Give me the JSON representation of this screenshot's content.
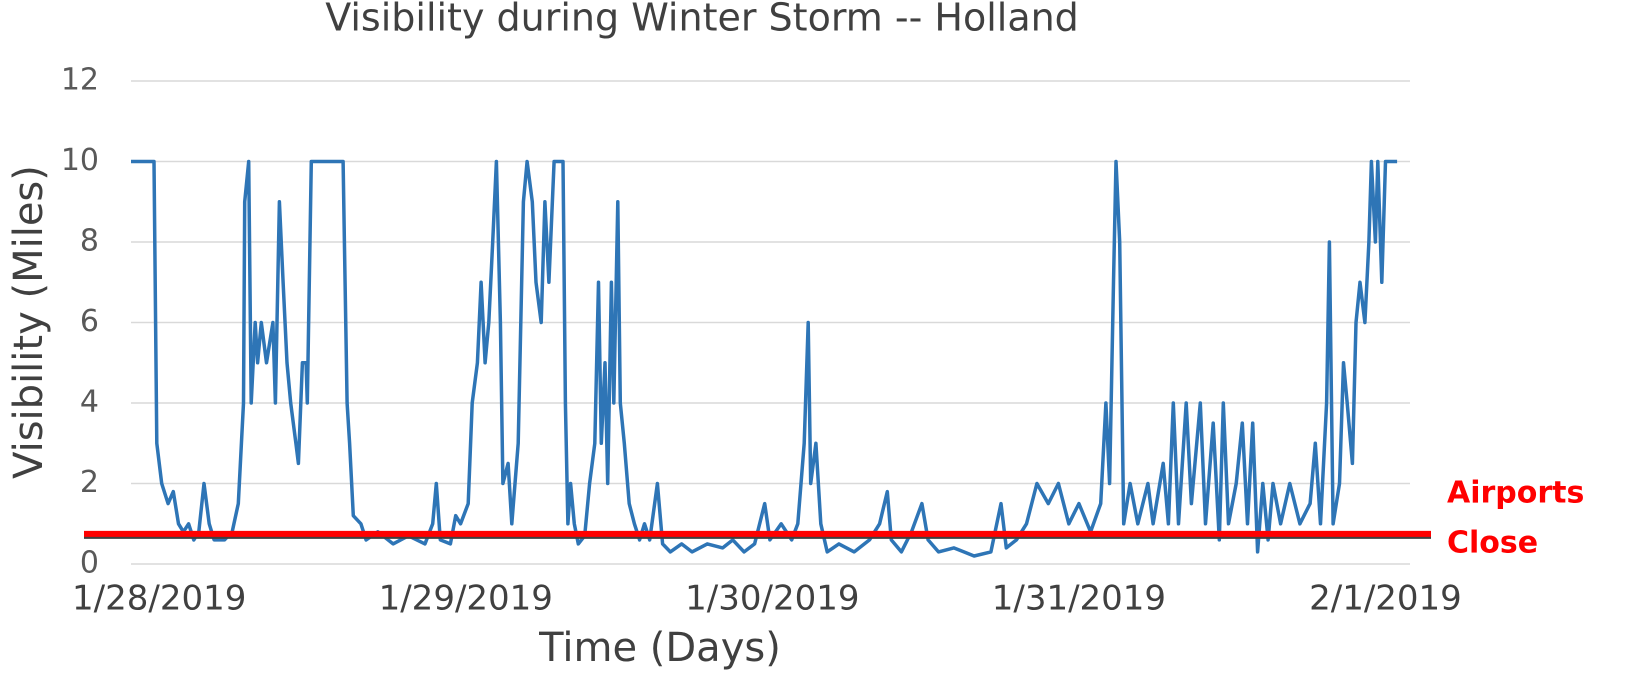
{
  "chart_data": {
    "type": "line",
    "title": "Visibility during Winter Storm -- Holland",
    "x_label": "Time (Days)",
    "y_label": "Visibility (Miles)",
    "color": "#2e75b6",
    "grid": true,
    "xlim": [
      -0.092,
      4.08
    ],
    "ylim": [
      0,
      12
    ],
    "xticks": [
      {
        "value": 0,
        "label": "1/28/2019"
      },
      {
        "value": 1,
        "label": "1/29/2019"
      },
      {
        "value": 2,
        "label": "1/30/2019"
      },
      {
        "value": 3,
        "label": "1/31/2019"
      },
      {
        "value": 4,
        "label": "2/1/2019"
      }
    ],
    "yticks": [
      0,
      2,
      4,
      6,
      8,
      10,
      12
    ],
    "reference_line": {
      "value": 0.75,
      "color": "#ff0000",
      "label": [
        "Airports",
        "Close"
      ]
    },
    "x": [
      -0.092,
      -0.017,
      -0.008,
      0.008,
      0.029,
      0.046,
      0.063,
      0.079,
      0.096,
      0.113,
      0.129,
      0.146,
      0.163,
      0.179,
      0.213,
      0.238,
      0.258,
      0.275,
      0.279,
      0.292,
      0.3,
      0.313,
      0.321,
      0.333,
      0.35,
      0.371,
      0.379,
      0.392,
      0.404,
      0.417,
      0.429,
      0.446,
      0.454,
      0.467,
      0.479,
      0.483,
      0.496,
      0.6,
      0.604,
      0.613,
      0.621,
      0.633,
      0.658,
      0.675,
      0.713,
      0.763,
      0.813,
      0.867,
      0.892,
      0.904,
      0.917,
      0.95,
      0.967,
      0.983,
      1.008,
      1.021,
      1.038,
      1.05,
      1.063,
      1.075,
      1.088,
      1.1,
      1.113,
      1.121,
      1.138,
      1.15,
      1.171,
      1.188,
      1.2,
      1.217,
      1.229,
      1.246,
      1.258,
      1.271,
      1.288,
      1.317,
      1.325,
      1.333,
      1.342,
      1.354,
      1.367,
      1.388,
      1.404,
      1.421,
      1.433,
      1.442,
      1.454,
      1.463,
      1.475,
      1.483,
      1.496,
      1.504,
      1.517,
      1.533,
      1.55,
      1.567,
      1.583,
      1.6,
      1.625,
      1.642,
      1.667,
      1.704,
      1.738,
      1.788,
      1.838,
      1.871,
      1.908,
      1.942,
      1.975,
      1.992,
      2.029,
      2.063,
      2.083,
      2.104,
      2.117,
      2.125,
      2.142,
      2.158,
      2.179,
      2.217,
      2.267,
      2.317,
      2.35,
      2.375,
      2.388,
      2.421,
      2.454,
      2.488,
      2.508,
      2.542,
      2.592,
      2.625,
      2.658,
      2.713,
      2.746,
      2.763,
      2.796,
      2.829,
      2.863,
      2.9,
      2.933,
      2.967,
      3.0,
      3.038,
      3.071,
      3.088,
      3.1,
      3.113,
      3.121,
      3.133,
      3.146,
      3.167,
      3.192,
      3.225,
      3.242,
      3.275,
      3.292,
      3.308,
      3.325,
      3.35,
      3.367,
      3.396,
      3.413,
      3.438,
      3.458,
      3.471,
      3.488,
      3.513,
      3.533,
      3.55,
      3.567,
      3.583,
      3.6,
      3.617,
      3.633,
      3.658,
      3.688,
      3.721,
      3.754,
      3.771,
      3.788,
      3.808,
      3.817,
      3.829,
      3.85,
      3.863,
      3.875,
      3.892,
      3.904,
      3.917,
      3.933,
      3.946,
      3.954,
      3.967,
      3.975,
      3.988,
      4.0,
      4.038
    ],
    "values": [
      10,
      10,
      3,
      2,
      1.5,
      1.8,
      1,
      0.8,
      1,
      0.6,
      0.8,
      2,
      1,
      0.6,
      0.6,
      0.8,
      1.5,
      4,
      9,
      10,
      4,
      6,
      5,
      6,
      5,
      6,
      4,
      9,
      7,
      5,
      4,
      3,
      2.5,
      5,
      5,
      4,
      10,
      10,
      8,
      4,
      3,
      1.2,
      1,
      0.6,
      0.8,
      0.5,
      0.7,
      0.5,
      1,
      2,
      0.6,
      0.5,
      1.2,
      1,
      1.5,
      4,
      5,
      7,
      5,
      6,
      8,
      10,
      6,
      2,
      2.5,
      1,
      3,
      9,
      10,
      9,
      7,
      6,
      9,
      7,
      10,
      10,
      4,
      1,
      2,
      1,
      0.5,
      0.7,
      2,
      3,
      7,
      3,
      5,
      2,
      7,
      4,
      9,
      4,
      3,
      1.5,
      1,
      0.6,
      1,
      0.6,
      2,
      0.5,
      0.3,
      0.5,
      0.3,
      0.5,
      0.4,
      0.6,
      0.3,
      0.5,
      1.5,
      0.6,
      1,
      0.6,
      1,
      3,
      6,
      2,
      3,
      1,
      0.3,
      0.5,
      0.3,
      0.6,
      1,
      1.8,
      0.6,
      0.3,
      0.8,
      1.5,
      0.6,
      0.3,
      0.4,
      0.3,
      0.2,
      0.3,
      1.5,
      0.4,
      0.6,
      1,
      2,
      1.5,
      2,
      1,
      1.5,
      0.8,
      1.5,
      4,
      2,
      7,
      10,
      8,
      1,
      2,
      1,
      2,
      1,
      2.5,
      1,
      4,
      1,
      4,
      1.5,
      4,
      1,
      3.5,
      0.6,
      4,
      1,
      2,
      3.5,
      1,
      3.5,
      0.3,
      2,
      0.6,
      2,
      1,
      2,
      1,
      1.5,
      3,
      1,
      4,
      8,
      1,
      2,
      5,
      4,
      2.5,
      6,
      7,
      6,
      8,
      10,
      8,
      10,
      7,
      10,
      10
    ]
  }
}
